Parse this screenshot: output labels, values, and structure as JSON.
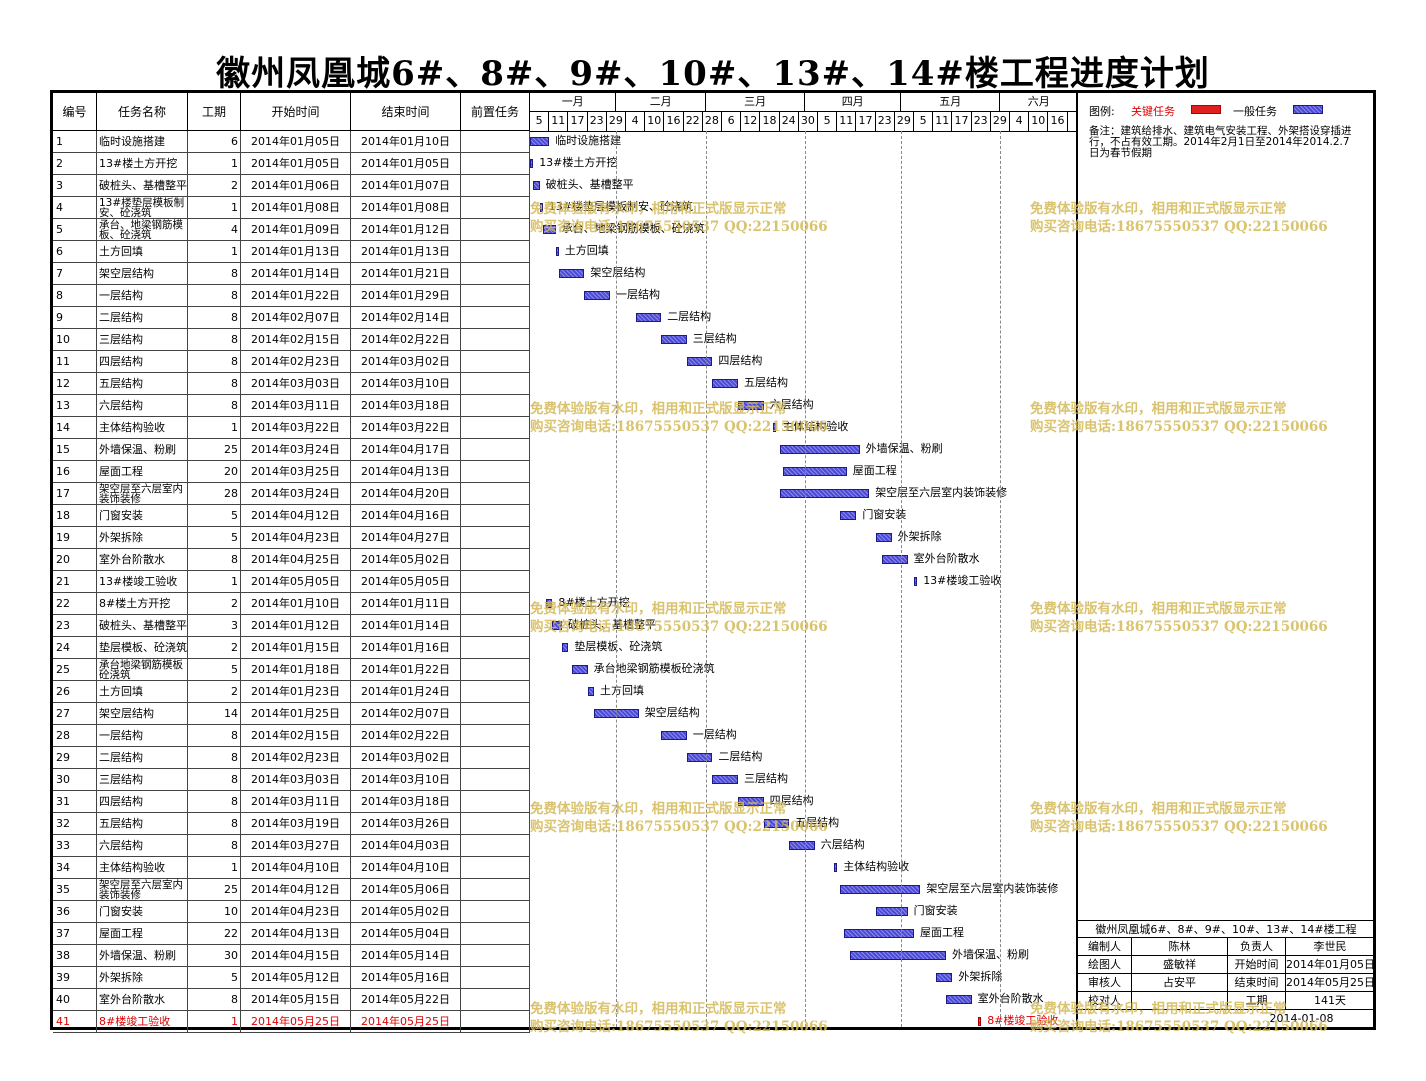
{
  "title": "徽州凤凰城6#、8#、9#、10#、13#、14#楼工程进度计划",
  "table": {
    "headers": {
      "id": "编号",
      "name": "任务名称",
      "duration": "工期",
      "start": "开始时间",
      "end": "结束时间",
      "pred": "前置任务"
    },
    "rows": [
      {
        "id": "1",
        "name": "临时设施搭建",
        "duration": "6",
        "start": "2014年01月05日",
        "end": "2014年01月10日"
      },
      {
        "id": "2",
        "name": "13#楼土方开挖",
        "duration": "1",
        "start": "2014年01月05日",
        "end": "2014年01月05日"
      },
      {
        "id": "3",
        "name": "破桩头、基槽整平",
        "duration": "2",
        "start": "2014年01月06日",
        "end": "2014年01月07日"
      },
      {
        "id": "4",
        "name": "13#楼垫层模板制安、砼浇筑",
        "duration": "1",
        "start": "2014年01月08日",
        "end": "2014年01月08日"
      },
      {
        "id": "5",
        "name": "承台、地梁钢筋模板、砼浇筑",
        "duration": "4",
        "start": "2014年01月09日",
        "end": "2014年01月12日"
      },
      {
        "id": "6",
        "name": "土方回填",
        "duration": "1",
        "start": "2014年01月13日",
        "end": "2014年01月13日"
      },
      {
        "id": "7",
        "name": "架空层结构",
        "duration": "8",
        "start": "2014年01月14日",
        "end": "2014年01月21日"
      },
      {
        "id": "8",
        "name": "一层结构",
        "duration": "8",
        "start": "2014年01月22日",
        "end": "2014年01月29日"
      },
      {
        "id": "9",
        "name": "二层结构",
        "duration": "8",
        "start": "2014年02月07日",
        "end": "2014年02月14日"
      },
      {
        "id": "10",
        "name": "三层结构",
        "duration": "8",
        "start": "2014年02月15日",
        "end": "2014年02月22日"
      },
      {
        "id": "11",
        "name": "四层结构",
        "duration": "8",
        "start": "2014年02月23日",
        "end": "2014年03月02日"
      },
      {
        "id": "12",
        "name": "五层结构",
        "duration": "8",
        "start": "2014年03月03日",
        "end": "2014年03月10日"
      },
      {
        "id": "13",
        "name": "六层结构",
        "duration": "8",
        "start": "2014年03月11日",
        "end": "2014年03月18日"
      },
      {
        "id": "14",
        "name": "主体结构验收",
        "duration": "1",
        "start": "2014年03月22日",
        "end": "2014年03月22日"
      },
      {
        "id": "15",
        "name": "外墙保温、粉刷",
        "duration": "25",
        "start": "2014年03月24日",
        "end": "2014年04月17日"
      },
      {
        "id": "16",
        "name": "屋面工程",
        "duration": "20",
        "start": "2014年03月25日",
        "end": "2014年04月13日"
      },
      {
        "id": "17",
        "name": "架空层至六层室内装饰装修",
        "duration": "28",
        "start": "2014年03月24日",
        "end": "2014年04月20日"
      },
      {
        "id": "18",
        "name": "门窗安装",
        "duration": "5",
        "start": "2014年04月12日",
        "end": "2014年04月16日"
      },
      {
        "id": "19",
        "name": "外架拆除",
        "duration": "5",
        "start": "2014年04月23日",
        "end": "2014年04月27日"
      },
      {
        "id": "20",
        "name": "室外台阶散水",
        "duration": "8",
        "start": "2014年04月25日",
        "end": "2014年05月02日"
      },
      {
        "id": "21",
        "name": "13#楼竣工验收",
        "duration": "1",
        "start": "2014年05月05日",
        "end": "2014年05月05日"
      },
      {
        "id": "22",
        "name": "8#楼土方开挖",
        "duration": "2",
        "start": "2014年01月10日",
        "end": "2014年01月11日"
      },
      {
        "id": "23",
        "name": "破桩头、基槽整平",
        "duration": "3",
        "start": "2014年01月12日",
        "end": "2014年01月14日"
      },
      {
        "id": "24",
        "name": "垫层模板、砼浇筑",
        "duration": "2",
        "start": "2014年01月15日",
        "end": "2014年01月16日"
      },
      {
        "id": "25",
        "name": "承台地梁钢筋模板砼浇筑",
        "duration": "5",
        "start": "2014年01月18日",
        "end": "2014年01月22日"
      },
      {
        "id": "26",
        "name": "土方回填",
        "duration": "2",
        "start": "2014年01月23日",
        "end": "2014年01月24日"
      },
      {
        "id": "27",
        "name": "架空层结构",
        "duration": "14",
        "start": "2014年01月25日",
        "end": "2014年02月07日"
      },
      {
        "id": "28",
        "name": "一层结构",
        "duration": "8",
        "start": "2014年02月15日",
        "end": "2014年02月22日"
      },
      {
        "id": "29",
        "name": "二层结构",
        "duration": "8",
        "start": "2014年02月23日",
        "end": "2014年03月02日"
      },
      {
        "id": "30",
        "name": "三层结构",
        "duration": "8",
        "start": "2014年03月03日",
        "end": "2014年03月10日"
      },
      {
        "id": "31",
        "name": "四层结构",
        "duration": "8",
        "start": "2014年03月11日",
        "end": "2014年03月18日"
      },
      {
        "id": "32",
        "name": "五层结构",
        "duration": "8",
        "start": "2014年03月19日",
        "end": "2014年03月26日"
      },
      {
        "id": "33",
        "name": "六层结构",
        "duration": "8",
        "start": "2014年03月27日",
        "end": "2014年04月03日"
      },
      {
        "id": "34",
        "name": "主体结构验收",
        "duration": "1",
        "start": "2014年04月10日",
        "end": "2014年04月10日"
      },
      {
        "id": "35",
        "name": "架空层至六层室内装饰装修",
        "duration": "25",
        "start": "2014年04月12日",
        "end": "2014年05月06日"
      },
      {
        "id": "36",
        "name": "门窗安装",
        "duration": "10",
        "start": "2014年04月23日",
        "end": "2014年05月02日"
      },
      {
        "id": "37",
        "name": "屋面工程",
        "duration": "22",
        "start": "2014年04月13日",
        "end": "2014年05月04日"
      },
      {
        "id": "38",
        "name": "外墙保温、粉刷",
        "duration": "30",
        "start": "2014年04月15日",
        "end": "2014年05月14日"
      },
      {
        "id": "39",
        "name": "外架拆除",
        "duration": "5",
        "start": "2014年05月12日",
        "end": "2014年05月16日"
      },
      {
        "id": "40",
        "name": "室外台阶散水",
        "duration": "8",
        "start": "2014年05月15日",
        "end": "2014年05月22日"
      },
      {
        "id": "41",
        "name": "8#楼竣工验收",
        "duration": "1",
        "start": "2014年05月25日",
        "end": "2014年05月25日",
        "critical": true
      }
    ]
  },
  "timeline": {
    "months": [
      "一月",
      "二月",
      "三月",
      "四月",
      "五月",
      "六月"
    ],
    "days": [
      "5",
      "11",
      "17",
      "23",
      "29",
      "4",
      "10",
      "16",
      "22",
      "28",
      "6",
      "12",
      "18",
      "24",
      "30",
      "5",
      "11",
      "17",
      "23",
      "29",
      "5",
      "11",
      "17",
      "23",
      "29",
      "4",
      "10",
      "16"
    ]
  },
  "chart_data": {
    "type": "gantt",
    "title": "徽州凤凰城6#、8#、9#、10#、13#、14#楼工程进度计划",
    "x_range": [
      "2014-01-05",
      "2014-06-19"
    ],
    "tasks": [
      {
        "label": "临时设施搭建",
        "start": "2014-01-05",
        "end": "2014-01-10"
      },
      {
        "label": "13#楼土方开挖",
        "start": "2014-01-05",
        "end": "2014-01-05"
      },
      {
        "label": "破桩头、基槽整平",
        "start": "2014-01-06",
        "end": "2014-01-07"
      },
      {
        "label": "13#楼垫层模板制安、砼浇筑",
        "start": "2014-01-08",
        "end": "2014-01-08"
      },
      {
        "label": "承台、地梁钢筋模板、砼浇筑",
        "start": "2014-01-09",
        "end": "2014-01-12"
      },
      {
        "label": "土方回填",
        "start": "2014-01-13",
        "end": "2014-01-13"
      },
      {
        "label": "架空层结构",
        "start": "2014-01-14",
        "end": "2014-01-21"
      },
      {
        "label": "一层结构",
        "start": "2014-01-22",
        "end": "2014-01-29"
      },
      {
        "label": "二层结构",
        "start": "2014-02-07",
        "end": "2014-02-14"
      },
      {
        "label": "三层结构",
        "start": "2014-02-15",
        "end": "2014-02-22"
      },
      {
        "label": "四层结构",
        "start": "2014-02-23",
        "end": "2014-03-02"
      },
      {
        "label": "五层结构",
        "start": "2014-03-03",
        "end": "2014-03-10"
      },
      {
        "label": "六层结构",
        "start": "2014-03-11",
        "end": "2014-03-18"
      },
      {
        "label": "主体结构验收",
        "start": "2014-03-22",
        "end": "2014-03-22"
      },
      {
        "label": "外墙保温、粉刷",
        "start": "2014-03-24",
        "end": "2014-04-17"
      },
      {
        "label": "屋面工程",
        "start": "2014-03-25",
        "end": "2014-04-13"
      },
      {
        "label": "架空层至六层室内装饰装修",
        "start": "2014-03-24",
        "end": "2014-04-20"
      },
      {
        "label": "门窗安装",
        "start": "2014-04-12",
        "end": "2014-04-16"
      },
      {
        "label": "外架拆除",
        "start": "2014-04-23",
        "end": "2014-04-27"
      },
      {
        "label": "室外台阶散水",
        "start": "2014-04-25",
        "end": "2014-05-02"
      },
      {
        "label": "13#楼竣工验收",
        "start": "2014-05-05",
        "end": "2014-05-05"
      },
      {
        "label": "8#楼土方开挖",
        "start": "2014-01-10",
        "end": "2014-01-11"
      },
      {
        "label": "破桩头、基槽整平",
        "start": "2014-01-12",
        "end": "2014-01-14"
      },
      {
        "label": "垫层模板、砼浇筑",
        "start": "2014-01-15",
        "end": "2014-01-16"
      },
      {
        "label": "承台地梁钢筋模板砼浇筑",
        "start": "2014-01-18",
        "end": "2014-01-22"
      },
      {
        "label": "土方回填",
        "start": "2014-01-23",
        "end": "2014-01-24"
      },
      {
        "label": "架空层结构",
        "start": "2014-01-25",
        "end": "2014-02-07"
      },
      {
        "label": "一层结构",
        "start": "2014-02-15",
        "end": "2014-02-22"
      },
      {
        "label": "二层结构",
        "start": "2014-02-23",
        "end": "2014-03-02"
      },
      {
        "label": "三层结构",
        "start": "2014-03-03",
        "end": "2014-03-10"
      },
      {
        "label": "四层结构",
        "start": "2014-03-11",
        "end": "2014-03-18"
      },
      {
        "label": "五层结构",
        "start": "2014-03-19",
        "end": "2014-03-26"
      },
      {
        "label": "六层结构",
        "start": "2014-03-27",
        "end": "2014-04-03"
      },
      {
        "label": "主体结构验收",
        "start": "2014-04-10",
        "end": "2014-04-10"
      },
      {
        "label": "架空层至六层室内装饰装修",
        "start": "2014-04-12",
        "end": "2014-05-06"
      },
      {
        "label": "门窗安装",
        "start": "2014-04-23",
        "end": "2014-05-02"
      },
      {
        "label": "屋面工程",
        "start": "2014-04-13",
        "end": "2014-05-04"
      },
      {
        "label": "外墙保温、粉刷",
        "start": "2014-04-15",
        "end": "2014-05-14"
      },
      {
        "label": "外架拆除",
        "start": "2014-05-12",
        "end": "2014-05-16"
      },
      {
        "label": "室外台阶散水",
        "start": "2014-05-15",
        "end": "2014-05-22"
      },
      {
        "label": "8#楼竣工验收",
        "start": "2014-05-25",
        "end": "2014-05-25",
        "critical": true
      }
    ]
  },
  "legend": {
    "label": "图例:",
    "critical": "关键任务",
    "normal": "一般任务",
    "critical_color": "#e02020",
    "normal_color": "#4a4ad6"
  },
  "note": "备注：建筑给排水、建筑电气安装工程、外架搭设穿插进行，不占有效工期。2014年2月1日至2014年2014.2.7日为春节假期",
  "info": {
    "title": "徽州凤凰城6#、8#、9#、10#、13#、14#楼工程",
    "r1": [
      "编制人",
      "陈林",
      "负责人",
      "李世民"
    ],
    "r2": [
      "绘图人",
      "盛敏祥",
      "开始时间",
      "2014年01月05日"
    ],
    "r3": [
      "审核人",
      "占安平",
      "结束时间",
      "2014年05月25日"
    ],
    "r4": [
      "校对人",
      "",
      "工期",
      "141天"
    ],
    "date": "2014-01-08"
  },
  "watermark": {
    "line1": "免费体验版有水印，相用和正式版显示正常",
    "line2": "购买咨询电话:18675550537 QQ:22150066"
  }
}
